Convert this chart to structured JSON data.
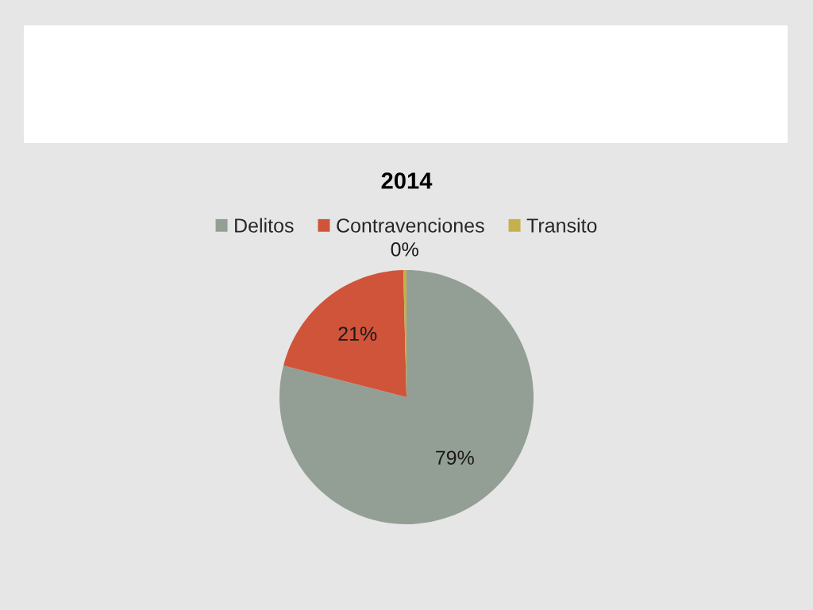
{
  "chart_data": {
    "type": "pie",
    "title": "2014",
    "categories": [
      "Delitos",
      "Contravenciones",
      "Transito"
    ],
    "values": [
      79,
      20.6,
      0.4
    ],
    "value_labels": [
      "79%",
      "21%",
      "0%"
    ],
    "colors": [
      "#939f94",
      "#d0543a",
      "#c4b04c"
    ],
    "legend": "top"
  }
}
